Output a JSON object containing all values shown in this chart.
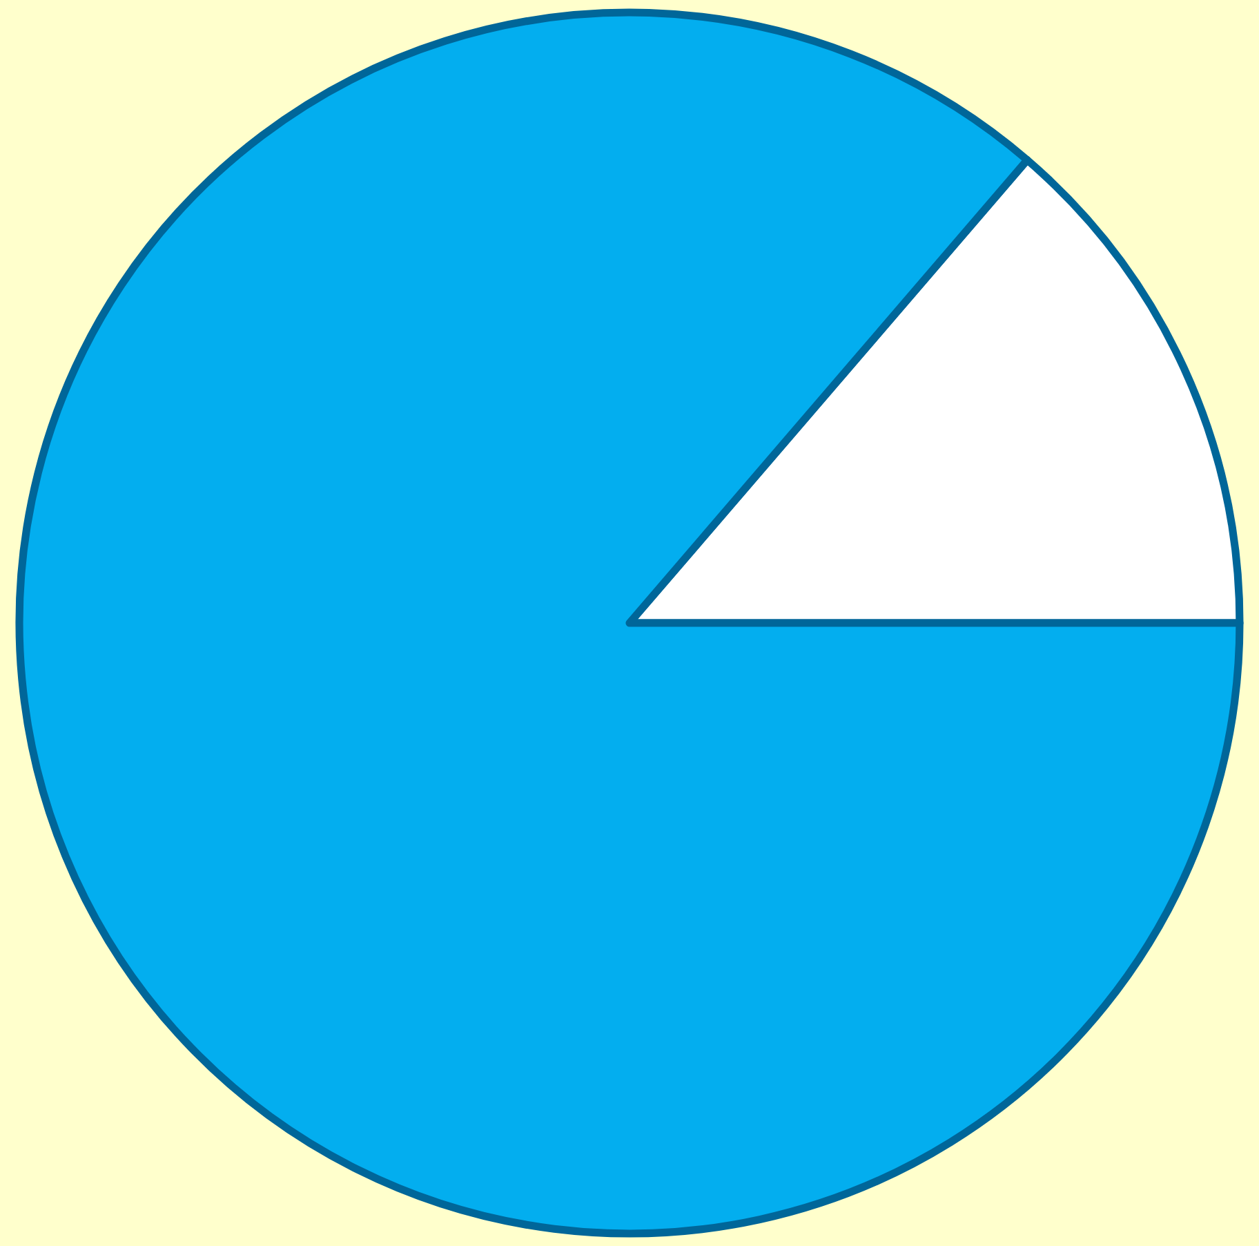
{
  "chart_data": {
    "type": "pie",
    "categories": [
      null,
      null
    ],
    "values": [
      13.7,
      86.3
    ],
    "colors": [
      "#ffffff",
      "#03aeef"
    ]
  }
}
